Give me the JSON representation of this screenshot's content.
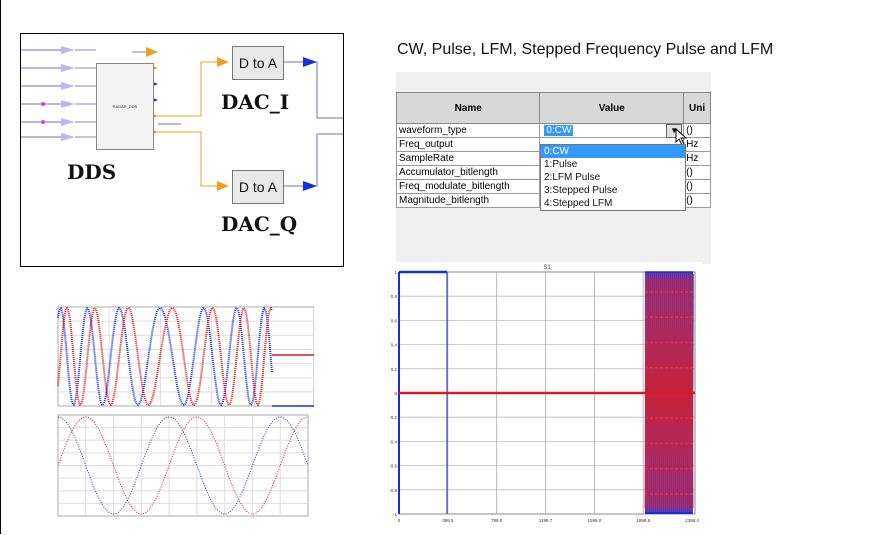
{
  "title": "CW, Pulse, LFM, Stepped Frequency Pulse and LFM",
  "diagram": {
    "dds_label": "DDS",
    "dds_block_label": "RADAR_DDS",
    "dac_i_label": "DAC_I",
    "dac_q_label": "DAC_Q",
    "d_to_a_label": "D to A"
  },
  "table": {
    "headers": [
      "Name",
      "Value",
      "Uni"
    ],
    "rows": [
      {
        "name": "waveform_type",
        "value": "0:CW",
        "unit": "()"
      },
      {
        "name": "Freq_output",
        "value": "",
        "unit": "Hz"
      },
      {
        "name": "SampleRate",
        "value": "",
        "unit": "Hz"
      },
      {
        "name": "Accumulator_bitlength",
        "value": "",
        "unit": "()"
      },
      {
        "name": "Freq_modulate_bitlength",
        "value": "",
        "unit": "()"
      },
      {
        "name": "Magnitude_bitlength",
        "value": "",
        "unit": "()"
      }
    ],
    "dropdown_options": [
      "0:CW",
      "1:Pulse",
      "2:LFM Pulse",
      "3:Stepped Pulse",
      "4:Stepped LFM"
    ],
    "dropdown_selected": "0:CW"
  },
  "right_plot": {
    "title": "S1",
    "x_ticks": [
      "0",
      "399.5",
      "799.0",
      "1198.7",
      "1599.0",
      "1998.5",
      "2398.4"
    ],
    "y_ticks": [
      "1",
      "0.8",
      "0.6",
      "0.4",
      "0.2",
      "0",
      "-0.2",
      "-0.4",
      "-0.6",
      "-0.8",
      "-1"
    ]
  },
  "colors": {
    "blue": "#1530d8",
    "red": "#e01818",
    "orange": "#f0a020"
  }
}
